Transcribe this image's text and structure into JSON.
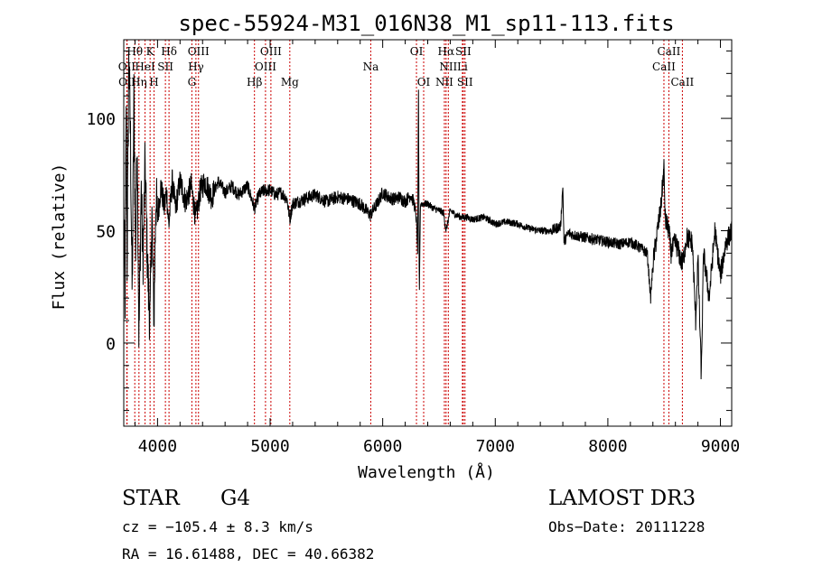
{
  "chart_data": {
    "type": "line",
    "title": "spec-55924-M31_016N38_M1_sp11-113.fits",
    "xlabel": "Wavelength (Å)",
    "ylabel": "Flux (relative)",
    "xlim": [
      3700,
      9100
    ],
    "ylim": [
      -37,
      135
    ],
    "xticks": [
      4000,
      5000,
      6000,
      7000,
      8000,
      9000
    ],
    "yticks": [
      0,
      50,
      100
    ],
    "line_color": "#000000",
    "marker_color": "#cc0000",
    "lines": [
      {
        "label": "OII",
        "x": 3727,
        "row": 1
      },
      {
        "label": "Hθ",
        "x": 3798,
        "row": 0
      },
      {
        "label": "OII",
        "x": 3730,
        "row": 2
      },
      {
        "label": "HeI",
        "x": 3889,
        "row": 1
      },
      {
        "label": "Hη",
        "x": 3835,
        "row": 2
      },
      {
        "label": "K",
        "x": 3934,
        "row": 0
      },
      {
        "label": "H",
        "x": 3969,
        "row": 2
      },
      {
        "label": "SII",
        "x": 4070,
        "row": 1
      },
      {
        "label": "Hδ",
        "x": 4102,
        "row": 0
      },
      {
        "label": "OIII",
        "x": 4364,
        "row": 0
      },
      {
        "label": "Hγ",
        "x": 4341,
        "row": 1
      },
      {
        "label": "G",
        "x": 4305,
        "row": 2
      },
      {
        "label": "Hβ",
        "x": 4861,
        "row": 2
      },
      {
        "label": "OIII",
        "x": 5007,
        "row": 0
      },
      {
        "label": "OIII",
        "x": 4959,
        "row": 1
      },
      {
        "label": "Mg",
        "x": 5175,
        "row": 2
      },
      {
        "label": "Na",
        "x": 5894,
        "row": 1
      },
      {
        "label": "OI",
        "x": 6300,
        "row": 0
      },
      {
        "label": "OI",
        "x": 6364,
        "row": 2
      },
      {
        "label": "Hα",
        "x": 6563,
        "row": 0
      },
      {
        "label": "NII",
        "x": 6583,
        "row": 1
      },
      {
        "label": "NII",
        "x": 6548,
        "row": 2
      },
      {
        "label": "SII",
        "x": 6716,
        "row": 0
      },
      {
        "label": "Li",
        "x": 6708,
        "row": 1
      },
      {
        "label": "SII",
        "x": 6731,
        "row": 2
      },
      {
        "label": "CaII",
        "x": 8542,
        "row": 0
      },
      {
        "label": "CaII",
        "x": 8498,
        "row": 1
      },
      {
        "label": "CaII",
        "x": 8662,
        "row": 2
      }
    ],
    "anchors": [
      [
        3700,
        62
      ],
      [
        3712,
        20
      ],
      [
        3722,
        110
      ],
      [
        3730,
        35
      ],
      [
        3745,
        130
      ],
      [
        3760,
        90
      ],
      [
        3775,
        20
      ],
      [
        3790,
        110
      ],
      [
        3805,
        40
      ],
      [
        3820,
        90
      ],
      [
        3835,
        0
      ],
      [
        3855,
        70
      ],
      [
        3870,
        35
      ],
      [
        3890,
        80
      ],
      [
        3905,
        45
      ],
      [
        3920,
        22
      ],
      [
        3934,
        10
      ],
      [
        3950,
        60
      ],
      [
        3960,
        30
      ],
      [
        3969,
        12
      ],
      [
        3985,
        65
      ],
      [
        4000,
        55
      ],
      [
        4030,
        70
      ],
      [
        4060,
        60
      ],
      [
        4080,
        68
      ],
      [
        4100,
        52
      ],
      [
        4130,
        72
      ],
      [
        4160,
        60
      ],
      [
        4200,
        72
      ],
      [
        4250,
        63
      ],
      [
        4300,
        70
      ],
      [
        4340,
        55
      ],
      [
        4380,
        68
      ],
      [
        4420,
        72
      ],
      [
        4480,
        65
      ],
      [
        4540,
        72
      ],
      [
        4600,
        67
      ],
      [
        4660,
        70
      ],
      [
        4720,
        66
      ],
      [
        4800,
        70
      ],
      [
        4861,
        60
      ],
      [
        4900,
        66
      ],
      [
        4950,
        68
      ],
      [
        5000,
        68
      ],
      [
        5050,
        66
      ],
      [
        5100,
        67
      ],
      [
        5150,
        64
      ],
      [
        5175,
        55
      ],
      [
        5200,
        62
      ],
      [
        5300,
        64
      ],
      [
        5400,
        66
      ],
      [
        5500,
        63
      ],
      [
        5600,
        65
      ],
      [
        5700,
        64
      ],
      [
        5800,
        62
      ],
      [
        5890,
        57
      ],
      [
        5950,
        62
      ],
      [
        6000,
        67
      ],
      [
        6050,
        65
      ],
      [
        6100,
        64
      ],
      [
        6150,
        65
      ],
      [
        6200,
        63
      ],
      [
        6250,
        66
      ],
      [
        6280,
        62
      ],
      [
        6300,
        55
      ],
      [
        6310,
        40
      ],
      [
        6318,
        112
      ],
      [
        6325,
        20
      ],
      [
        6335,
        62
      ],
      [
        6400,
        62
      ],
      [
        6450,
        60
      ],
      [
        6500,
        59
      ],
      [
        6540,
        58
      ],
      [
        6563,
        50
      ],
      [
        6600,
        59
      ],
      [
        6650,
        57
      ],
      [
        6700,
        56
      ],
      [
        6750,
        56
      ],
      [
        6800,
        55
      ],
      [
        6900,
        56
      ],
      [
        7000,
        53
      ],
      [
        7100,
        54
      ],
      [
        7200,
        53
      ],
      [
        7300,
        51
      ],
      [
        7400,
        50
      ],
      [
        7500,
        50
      ],
      [
        7580,
        52
      ],
      [
        7600,
        70
      ],
      [
        7610,
        45
      ],
      [
        7650,
        49
      ],
      [
        7700,
        48
      ],
      [
        7800,
        47
      ],
      [
        7900,
        46
      ],
      [
        8000,
        45
      ],
      [
        8100,
        44
      ],
      [
        8200,
        45
      ],
      [
        8300,
        42
      ],
      [
        8350,
        40
      ],
      [
        8380,
        20
      ],
      [
        8400,
        35
      ],
      [
        8440,
        50
      ],
      [
        8470,
        60
      ],
      [
        8498,
        78
      ],
      [
        8510,
        55
      ],
      [
        8542,
        50
      ],
      [
        8560,
        40
      ],
      [
        8600,
        45
      ],
      [
        8662,
        35
      ],
      [
        8700,
        47
      ],
      [
        8750,
        45
      ],
      [
        8780,
        10
      ],
      [
        8800,
        38
      ],
      [
        8830,
        -15
      ],
      [
        8850,
        40
      ],
      [
        8900,
        20
      ],
      [
        8950,
        50
      ],
      [
        9000,
        30
      ],
      [
        9050,
        45
      ],
      [
        9100,
        50
      ]
    ]
  },
  "footer": {
    "class_label": "STAR",
    "subclass": "G4",
    "survey": "LAMOST DR3",
    "redshift": "cz = −105.4 ± 8.3 km/s",
    "obs_date": "Obs−Date: 20111228",
    "coords": "RA =  16.61488, DEC =  40.66382"
  }
}
